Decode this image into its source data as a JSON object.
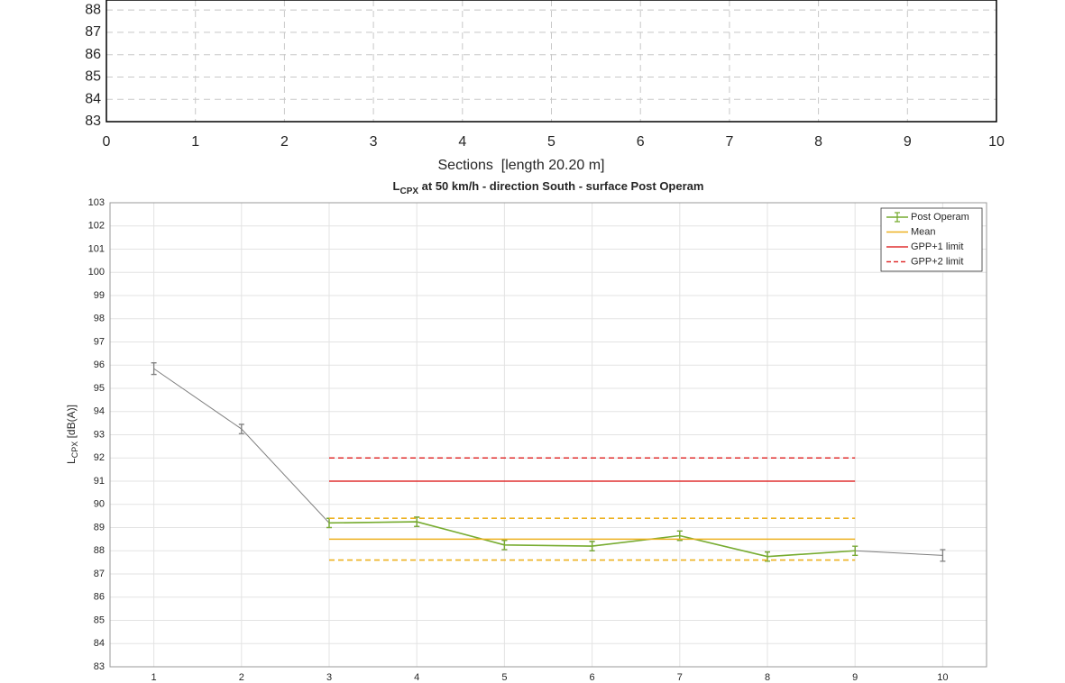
{
  "chart_data": [
    {
      "type": "line",
      "xlabel": "Sections  [length 20.20 m]",
      "xlim": [
        0,
        10
      ],
      "xticks": [
        0,
        1,
        2,
        3,
        4,
        5,
        6,
        7,
        8,
        9,
        10
      ],
      "ylim": [
        83,
        88.45
      ],
      "yticks": [
        83,
        84,
        85,
        86,
        87,
        88
      ],
      "grid": true,
      "grid_style": "dashed",
      "series": []
    },
    {
      "type": "line",
      "title": [
        "L",
        "CPX",
        " at 50 km/h - direction South - surface Post Operam"
      ],
      "ylabel": [
        "L",
        "CPX",
        " [dB(A)]"
      ],
      "xlim": [
        0.5,
        10.5
      ],
      "xticks": [
        1,
        2,
        3,
        4,
        5,
        6,
        7,
        8,
        9,
        10
      ],
      "ylim": [
        83,
        103
      ],
      "yticks": [
        83,
        84,
        85,
        86,
        87,
        88,
        89,
        90,
        91,
        92,
        93,
        94,
        95,
        96,
        97,
        98,
        99,
        100,
        101,
        102,
        103
      ],
      "grid": true,
      "grid_style": "solid",
      "legend": "upper right",
      "series": [
        {
          "color": "#7f7f7f",
          "dash": false,
          "x": [
            1,
            2,
            3,
            4,
            5,
            6,
            7,
            8,
            9,
            10
          ],
          "values": [
            95.85,
            93.25,
            89.2,
            89.25,
            88.25,
            88.2,
            88.65,
            87.75,
            88.0,
            87.8
          ],
          "errors": [
            0.25,
            0.2,
            0.2,
            0.2,
            0.2,
            0.2,
            0.2,
            0.2,
            0.2,
            0.25
          ]
        },
        {
          "name": "Post Operam",
          "color": "#77ac30",
          "dash": false,
          "x": [
            3,
            4,
            5,
            6,
            7,
            8,
            9
          ],
          "values": [
            89.2,
            89.25,
            88.25,
            88.2,
            88.65,
            87.75,
            88.0
          ],
          "errors": [
            0.2,
            0.2,
            0.2,
            0.2,
            0.2,
            0.2,
            0.2
          ]
        },
        {
          "name": "Mean",
          "color": "#edb120",
          "dash": false,
          "x": [
            3,
            9
          ],
          "values": [
            88.5,
            88.5
          ]
        },
        {
          "color": "#edb120",
          "dash": true,
          "x": [
            3,
            9
          ],
          "values": [
            89.4,
            89.4
          ]
        },
        {
          "color": "#edb120",
          "dash": true,
          "x": [
            3,
            9
          ],
          "values": [
            87.6,
            87.6
          ]
        },
        {
          "name": "GPP+1 limit",
          "color": "#e03030",
          "dash": false,
          "x": [
            3,
            9
          ],
          "values": [
            91,
            91
          ]
        },
        {
          "name": "GPP+2 limit",
          "color": "#e03030",
          "dash": true,
          "x": [
            3,
            9
          ],
          "values": [
            92,
            92
          ]
        }
      ]
    }
  ]
}
